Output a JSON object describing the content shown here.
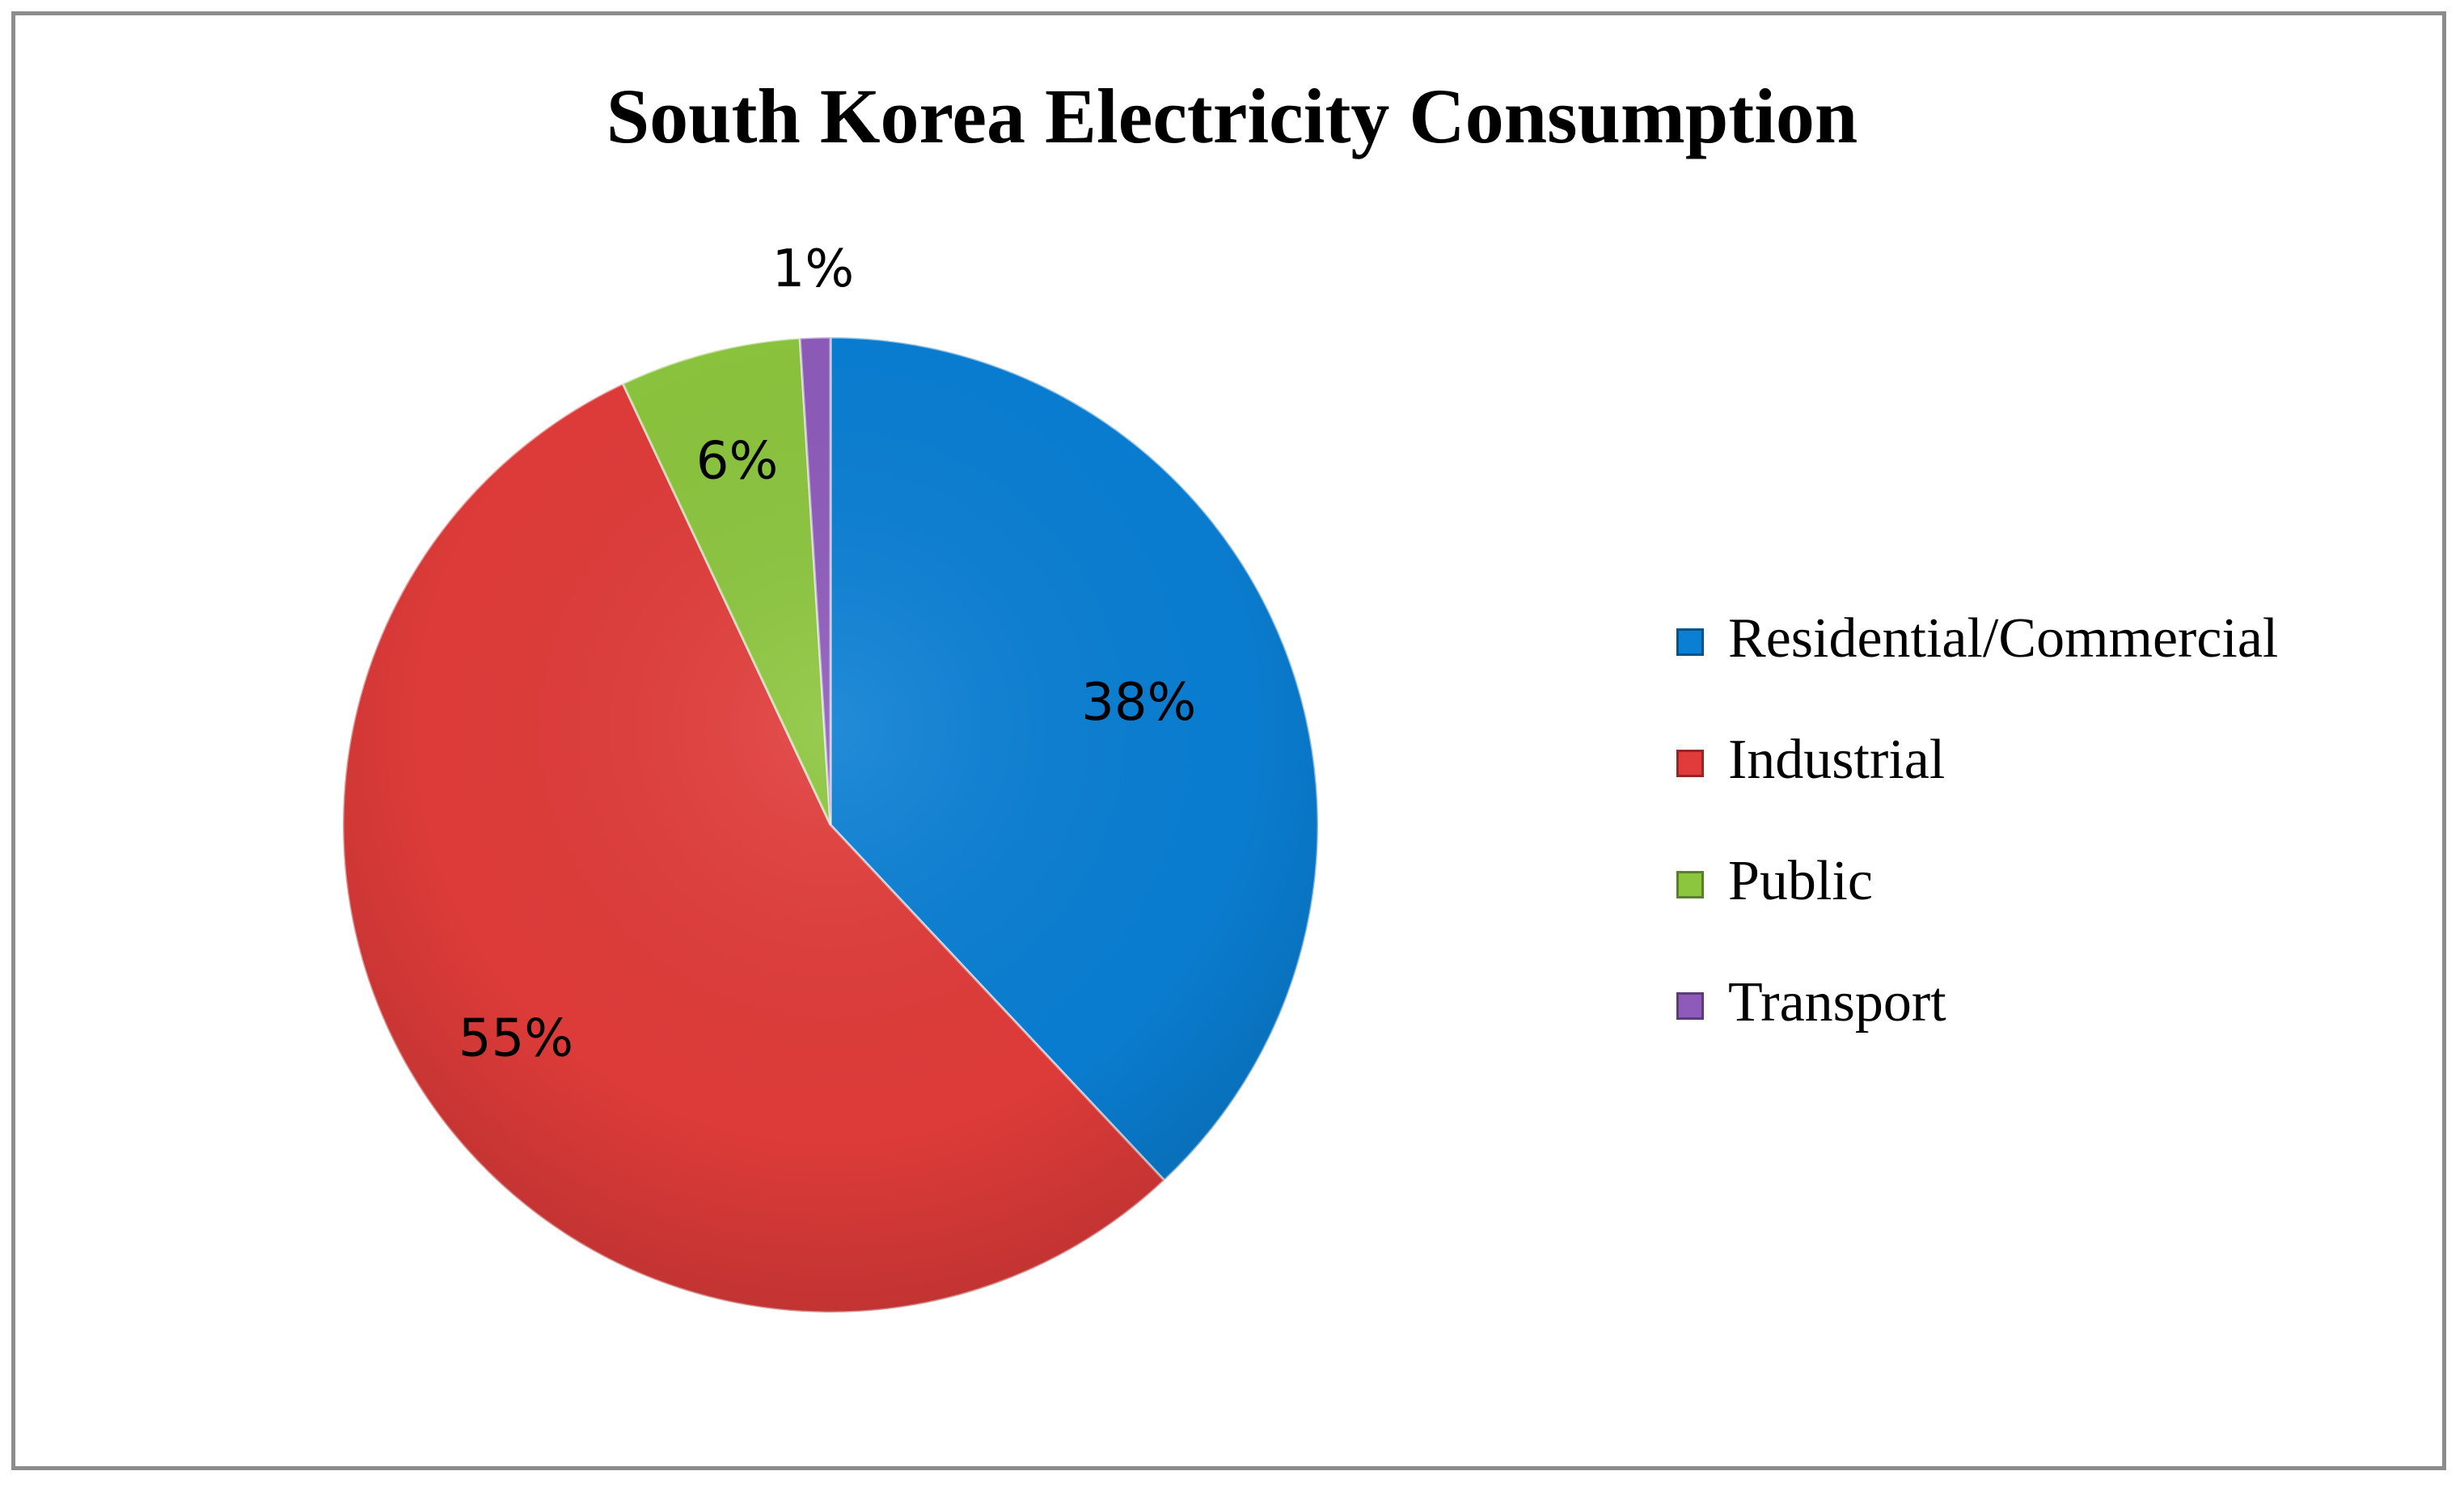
{
  "chart_data": {
    "type": "pie",
    "title": "South Korea Electricity Consumption",
    "slices": [
      {
        "name": "Residential/Commercial",
        "value": 38,
        "label": "38%",
        "color": "#0a7fd4"
      },
      {
        "name": "Industrial",
        "value": 55,
        "label": "55%",
        "color": "#e13c3a"
      },
      {
        "name": "Public",
        "value": 6,
        "label": "6%",
        "color": "#8cc63e"
      },
      {
        "name": "Transport",
        "value": 1,
        "label": "1%",
        "color": "#8e5bbb"
      }
    ],
    "legend_position": "right"
  }
}
